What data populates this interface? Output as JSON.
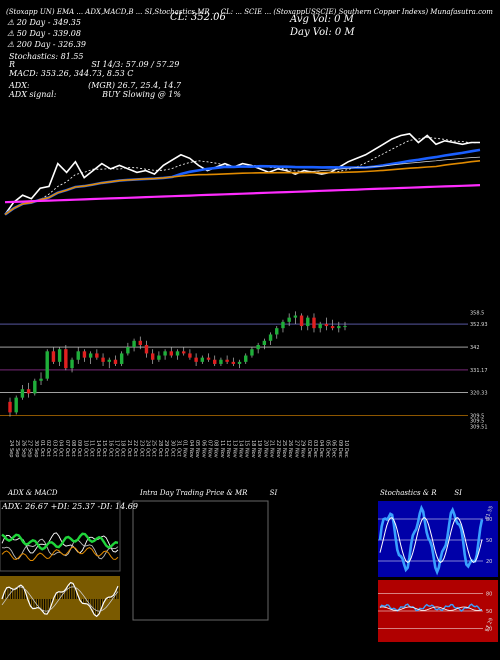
{
  "header": {
    "strip": "(Stoxapp UN) EMA ... ADX,MACD,B ... SI,Stochastics,MR ... CL: ... SCIE ... (StoxappUSSCIE) Southern Copper Indexs) Munafasutra.com",
    "left_title": "MunafaSutra",
    "stock_text": "(SCIE) Southern Copper Indexs) MunafaSutra.com",
    "cl_label": "CL: 352.06",
    "avg_vol": "Avg Vol: 0  M",
    "day_vol": "Day Vol: 0  M"
  },
  "indicators": {
    "dma20": "20  Day - 349.35",
    "dma50": "50  Day - 339.08",
    "dma200": "200  Day - 326.39",
    "stoch_label": "Stochastics: 81.55",
    "stoch_r": "R",
    "si": "SI 14/3: 57.09 / 57.29",
    "macd": "MACD: 353.26,  344.73,  8.53 C",
    "adx": "ADX:",
    "adx_values": "(MGR) 26.7,  25.4,  14.7",
    "adx_signal": "ADX  signal:",
    "adx_signal_value": "BUY Slowing @ 1%"
  },
  "price_axis": [
    "358.5",
    "352.93",
    "342",
    "331.17",
    "320.33",
    "309.5",
    "309.5",
    "309.51"
  ],
  "date_labels": [
    "24 Sep",
    "25 Sep",
    "26 Sep",
    "27 Sep",
    "30 Sep",
    "01 Oct",
    "02 Oct",
    "03 Oct",
    "04 Oct",
    "07 Oct",
    "08 Oct",
    "09 Oct",
    "10 Oct",
    "11 Oct",
    "14 Oct",
    "15 Oct",
    "16 Oct",
    "17 Oct",
    "18 Oct",
    "21 Oct",
    "22 Oct",
    "23 Oct",
    "24 Oct",
    "25 Oct",
    "28 Oct",
    "29 Oct",
    "30 Oct",
    "31 Oct",
    "01 Nov",
    "04 Nov",
    "05 Nov",
    "06 Nov",
    "07 Nov",
    "08 Nov",
    "11 Nov",
    "12 Nov",
    "13 Nov",
    "14 Nov",
    "15 Nov",
    "18 Nov",
    "19 Nov",
    "20 Nov",
    "21 Nov",
    "22 Nov",
    "25 Nov",
    "26 Nov",
    "27 Nov",
    "29 Nov",
    "02 Dec",
    "03 Dec",
    "04 Dec",
    "05 Dec",
    "06 Dec",
    "09 Dec",
    "10 Dec"
  ],
  "panels": {
    "adx_title": "ADX  & MACD",
    "adx_readout": "ADX: 26.67 +DI: 25.37 -DI: 14.69",
    "intra_title": "Intra  Day Trading Price  & MR",
    "intra_si": "SI",
    "stoch_title": "Stochastics & R",
    "stoch_si": "SI",
    "stoch_ticks": [
      "80",
      "50",
      "20"
    ],
    "rsi_ticks": [
      "80",
      "50",
      "20"
    ],
    "stoch_value": "81.55",
    "rsi_value": "57.29"
  },
  "colors": {
    "bull": "#1fae3a",
    "bear": "#e02020",
    "ma_blue": "#1a5fff",
    "ma_orange": "#e08a00",
    "ma_magenta": "#ff2cff",
    "rsi_bg": "#b00000",
    "stoch_bg": "#0000a8",
    "adx_bg": "#7a5a00"
  },
  "chart_data": {
    "type": "candlestick",
    "title": "Southern Copper Indexs (SCIE)",
    "xlabel": "",
    "ylabel": "",
    "ylim": [
      305,
      362
    ],
    "categories": [
      "24 Sep",
      "25 Sep",
      "26 Sep",
      "27 Sep",
      "30 Sep",
      "01 Oct",
      "02 Oct",
      "03 Oct",
      "04 Oct",
      "07 Oct",
      "08 Oct",
      "09 Oct",
      "10 Oct",
      "11 Oct",
      "14 Oct",
      "15 Oct",
      "16 Oct",
      "17 Oct",
      "18 Oct",
      "21 Oct",
      "22 Oct",
      "23 Oct",
      "24 Oct",
      "25 Oct",
      "28 Oct",
      "29 Oct",
      "30 Oct",
      "31 Oct",
      "01 Nov",
      "04 Nov",
      "05 Nov",
      "06 Nov",
      "07 Nov",
      "08 Nov",
      "11 Nov",
      "12 Nov",
      "13 Nov",
      "14 Nov",
      "15 Nov",
      "18 Nov",
      "19 Nov",
      "20 Nov",
      "21 Nov",
      "22 Nov",
      "25 Nov",
      "26 Nov",
      "27 Nov",
      "29 Nov",
      "02 Dec",
      "03 Dec",
      "04 Dec",
      "05 Dec",
      "06 Dec",
      "09 Dec",
      "10 Dec"
    ],
    "ohlc": [
      [
        316,
        318,
        309,
        311
      ],
      [
        311,
        319,
        310,
        318
      ],
      [
        318,
        324,
        317,
        322
      ],
      [
        322,
        325,
        318,
        320
      ],
      [
        320,
        327,
        319,
        326
      ],
      [
        326,
        330,
        324,
        327
      ],
      [
        327,
        341,
        326,
        340
      ],
      [
        340,
        342,
        334,
        335
      ],
      [
        335,
        342,
        333,
        341
      ],
      [
        341,
        343,
        331,
        332
      ],
      [
        332,
        337,
        330,
        336
      ],
      [
        336,
        342,
        334,
        340
      ],
      [
        340,
        341,
        335,
        337
      ],
      [
        337,
        340,
        334,
        339
      ],
      [
        339,
        341,
        336,
        337
      ],
      [
        337,
        339,
        333,
        335
      ],
      [
        335,
        337,
        332,
        336
      ],
      [
        336,
        338,
        333,
        334
      ],
      [
        334,
        340,
        333,
        339
      ],
      [
        339,
        344,
        338,
        342
      ],
      [
        342,
        346,
        340,
        345
      ],
      [
        345,
        347,
        341,
        343
      ],
      [
        343,
        345,
        337,
        339
      ],
      [
        339,
        341,
        334,
        336
      ],
      [
        336,
        340,
        335,
        338
      ],
      [
        338,
        341,
        336,
        340
      ],
      [
        340,
        342,
        337,
        338
      ],
      [
        338,
        341,
        336,
        340
      ],
      [
        340,
        342,
        338,
        339
      ],
      [
        339,
        341,
        336,
        337
      ],
      [
        337,
        339,
        333,
        335
      ],
      [
        335,
        338,
        334,
        337
      ],
      [
        337,
        339,
        335,
        336
      ],
      [
        336,
        338,
        333,
        334
      ],
      [
        334,
        337,
        333,
        336
      ],
      [
        336,
        338,
        334,
        335
      ],
      [
        335,
        337,
        333,
        334
      ],
      [
        334,
        336,
        332,
        335
      ],
      [
        335,
        339,
        334,
        338
      ],
      [
        338,
        342,
        337,
        341
      ],
      [
        341,
        344,
        339,
        343
      ],
      [
        343,
        346,
        341,
        345
      ],
      [
        345,
        349,
        343,
        348
      ],
      [
        348,
        352,
        346,
        351
      ],
      [
        351,
        355,
        349,
        354
      ],
      [
        354,
        358,
        352,
        356
      ],
      [
        356,
        359,
        353,
        357
      ],
      [
        357,
        358,
        350,
        352
      ],
      [
        352,
        357,
        350,
        356
      ],
      [
        356,
        358,
        349,
        351
      ],
      [
        351,
        354,
        349,
        353
      ],
      [
        353,
        356,
        350,
        352
      ],
      [
        352,
        355,
        350,
        351
      ],
      [
        351,
        354,
        349,
        352
      ],
      [
        352,
        354,
        350,
        352
      ]
    ]
  }
}
